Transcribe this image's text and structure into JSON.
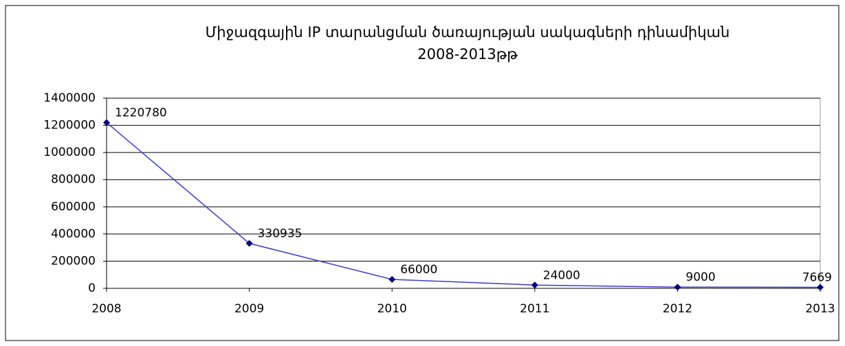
{
  "chart_data": {
    "type": "line",
    "title": [
      "Միջազգային IP տարանցման ծառայության սակագների դինամիկան",
      "2008-2013թթ"
    ],
    "x": [
      2008,
      2009,
      2010,
      2011,
      2012,
      2013
    ],
    "values": [
      1220780,
      330935,
      66000,
      24000,
      9000,
      7669
    ],
    "color": "#3a3acc",
    "marker_color": "#000080",
    "xlim": [
      2008,
      2013
    ],
    "xticks": [
      2008,
      2009,
      2010,
      2011,
      2012,
      2013
    ],
    "ylim": [
      0,
      1400000
    ],
    "yticks": [
      0,
      200000,
      400000,
      600000,
      800000,
      1000000,
      1200000,
      1400000
    ],
    "grid": true
  }
}
